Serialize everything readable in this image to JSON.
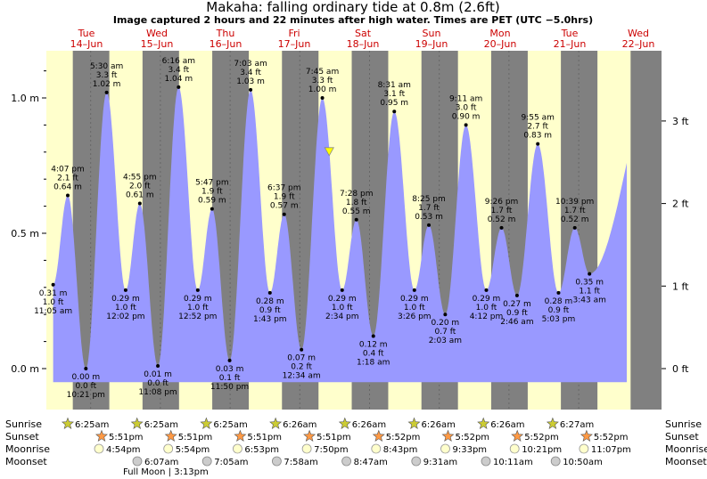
{
  "title": "Makaha: falling  ordinary tide at 0.8m (2.6ft)",
  "subtitle": "Image captured 2 hours and 22 minutes after high water. Times are PET (UTC −5.0hrs)",
  "colors": {
    "night": "#808080",
    "day": "#ffffcc",
    "tide": "#9999ff",
    "date": "#cc0000",
    "marker": "#ffff00"
  },
  "y_axis_left": {
    "labels": [
      "0.0 m",
      "0.5 m",
      "1.0 m"
    ],
    "values": [
      0,
      0.5,
      1.0
    ]
  },
  "y_axis_right": {
    "labels": [
      "0 ft",
      "1 ft",
      "2 ft",
      "3 ft"
    ],
    "values": [
      0,
      1,
      2,
      3
    ]
  },
  "days": [
    {
      "dow": "Tue",
      "date": "14–Jun"
    },
    {
      "dow": "Wed",
      "date": "15–Jun"
    },
    {
      "dow": "Thu",
      "date": "16–Jun"
    },
    {
      "dow": "Fri",
      "date": "17–Jun"
    },
    {
      "dow": "Sat",
      "date": "18–Jun"
    },
    {
      "dow": "Sun",
      "date": "19–Jun"
    },
    {
      "dow": "Mon",
      "date": "20–Jun"
    },
    {
      "dow": "Tue",
      "date": "21–Jun"
    },
    {
      "dow": "Wed",
      "date": "22–Jun"
    }
  ],
  "chart_data": {
    "type": "area",
    "title": "Makaha: falling  ordinary tide at 0.8m (2.6ft)",
    "ylabel": "",
    "ylim": [
      -0.07,
      1.18
    ],
    "grid": false,
    "series": [
      {
        "points": [
          {
            "day": 0,
            "time": "11:05 am",
            "m": 0.31,
            "ft": "1.0 ft",
            "m_label": "0.31 m",
            "type": "low"
          },
          {
            "day": 0,
            "time": "4:07 pm",
            "m": 0.64,
            "ft": "2.1 ft",
            "m_label": "0.64 m",
            "type": "high"
          },
          {
            "day": 0,
            "time": "10:21 pm",
            "m": 0.0,
            "ft": "0.0 ft",
            "m_label": "0.00 m",
            "type": "low"
          },
          {
            "day": 1,
            "time": "5:30 am",
            "m": 1.02,
            "ft": "3.3 ft",
            "m_label": "1.02 m",
            "type": "high"
          },
          {
            "day": 1,
            "time": "12:02 pm",
            "m": 0.29,
            "ft": "1.0 ft",
            "m_label": "0.29 m",
            "type": "low"
          },
          {
            "day": 1,
            "time": "4:55 pm",
            "m": 0.61,
            "ft": "2.0 ft",
            "m_label": "0.61 m",
            "type": "high"
          },
          {
            "day": 1,
            "time": "11:08 pm",
            "m": 0.01,
            "ft": "0.0 ft",
            "m_label": "0.01 m",
            "type": "low"
          },
          {
            "day": 2,
            "time": "6:16 am",
            "m": 1.04,
            "ft": "3.4 ft",
            "m_label": "1.04 m",
            "type": "high"
          },
          {
            "day": 2,
            "time": "12:52 pm",
            "m": 0.29,
            "ft": "1.0 ft",
            "m_label": "0.29 m",
            "type": "low"
          },
          {
            "day": 2,
            "time": "5:47 pm",
            "m": 0.59,
            "ft": "1.9 ft",
            "m_label": "0.59 m",
            "type": "high"
          },
          {
            "day": 2,
            "time": "11:50 pm",
            "m": 0.03,
            "ft": "0.1 ft",
            "m_label": "0.03 m",
            "type": "low"
          },
          {
            "day": 3,
            "time": "7:03 am",
            "m": 1.03,
            "ft": "3.4 ft",
            "m_label": "1.03 m",
            "type": "high"
          },
          {
            "day": 3,
            "time": "1:43 pm",
            "m": 0.28,
            "ft": "0.9 ft",
            "m_label": "0.28 m",
            "type": "low"
          },
          {
            "day": 3,
            "time": "6:37 pm",
            "m": 0.57,
            "ft": "1.9 ft",
            "m_label": "0.57 m",
            "type": "high"
          },
          {
            "day": 4,
            "time": "12:34 am",
            "m": 0.07,
            "ft": "0.2 ft",
            "m_label": "0.07 m",
            "type": "low"
          },
          {
            "day": 4,
            "time": "7:45 am",
            "m": 1.0,
            "ft": "3.3 ft",
            "m_label": "1.00 m",
            "type": "high"
          },
          {
            "day": 4,
            "time": "2:34 pm",
            "m": 0.29,
            "ft": "1.0 ft",
            "m_label": "0.29 m",
            "type": "low"
          },
          {
            "day": 4,
            "time": "7:28 pm",
            "m": 0.55,
            "ft": "1.8 ft",
            "m_label": "0.55 m",
            "type": "high"
          },
          {
            "day": 5,
            "time": "1:18 am",
            "m": 0.12,
            "ft": "0.4 ft",
            "m_label": "0.12 m",
            "type": "low"
          },
          {
            "day": 5,
            "time": "8:31 am",
            "m": 0.95,
            "ft": "3.1 ft",
            "m_label": "0.95 m",
            "type": "high"
          },
          {
            "day": 5,
            "time": "3:26 pm",
            "m": 0.29,
            "ft": "1.0 ft",
            "m_label": "0.29 m",
            "type": "low"
          },
          {
            "day": 5,
            "time": "8:25 pm",
            "m": 0.53,
            "ft": "1.7 ft",
            "m_label": "0.53 m",
            "type": "high"
          },
          {
            "day": 6,
            "time": "2:03 am",
            "m": 0.2,
            "ft": "0.7 ft",
            "m_label": "0.20 m",
            "type": "low"
          },
          {
            "day": 6,
            "time": "9:11 am",
            "m": 0.9,
            "ft": "3.0 ft",
            "m_label": "0.90 m",
            "type": "high"
          },
          {
            "day": 6,
            "time": "4:12 pm",
            "m": 0.29,
            "ft": "1.0 ft",
            "m_label": "0.29 m",
            "type": "low"
          },
          {
            "day": 6,
            "time": "9:26 pm",
            "m": 0.52,
            "ft": "1.7 ft",
            "m_label": "0.52 m",
            "type": "high"
          },
          {
            "day": 7,
            "time": "2:46 am",
            "m": 0.27,
            "ft": "0.9 ft",
            "m_label": "0.27 m",
            "type": "low"
          },
          {
            "day": 7,
            "time": "9:55 am",
            "m": 0.83,
            "ft": "2.7 ft",
            "m_label": "0.83 m",
            "type": "high"
          },
          {
            "day": 7,
            "time": "5:03 pm",
            "m": 0.28,
            "ft": "0.9 ft",
            "m_label": "0.28 m",
            "type": "low"
          },
          {
            "day": 7,
            "time": "10:39 pm",
            "m": 0.52,
            "ft": "1.7 ft",
            "m_label": "0.52 m",
            "type": "high"
          },
          {
            "day": 8,
            "time": "3:43 am",
            "m": 0.35,
            "ft": "1.1 ft",
            "m_label": "0.35 m",
            "type": "low"
          }
        ]
      }
    ],
    "current": {
      "day": 4,
      "time": "10:07 am",
      "m": 0.8
    }
  },
  "sun_moon": {
    "labels": {
      "sunrise": "Sunrise",
      "sunset": "Sunset",
      "moonrise": "Moonrise",
      "moonset": "Moonset"
    },
    "sunrise": [
      "6:25am",
      "6:25am",
      "6:25am",
      "6:26am",
      "6:26am",
      "6:26am",
      "6:26am",
      "6:27am"
    ],
    "sunset": [
      "5:51pm",
      "5:51pm",
      "5:51pm",
      "5:51pm",
      "5:52pm",
      "5:52pm",
      "5:52pm",
      "5:52pm"
    ],
    "moonrise": [
      "4:54pm",
      "5:54pm",
      "6:53pm",
      "7:50pm",
      "8:43pm",
      "9:33pm",
      "10:21pm",
      "11:07pm"
    ],
    "moonset": [
      "6:07am",
      "7:05am",
      "7:58am",
      "8:47am",
      "9:31am",
      "10:11am",
      "10:50am"
    ],
    "full_moon": "Full Moon | 3:13pm"
  }
}
